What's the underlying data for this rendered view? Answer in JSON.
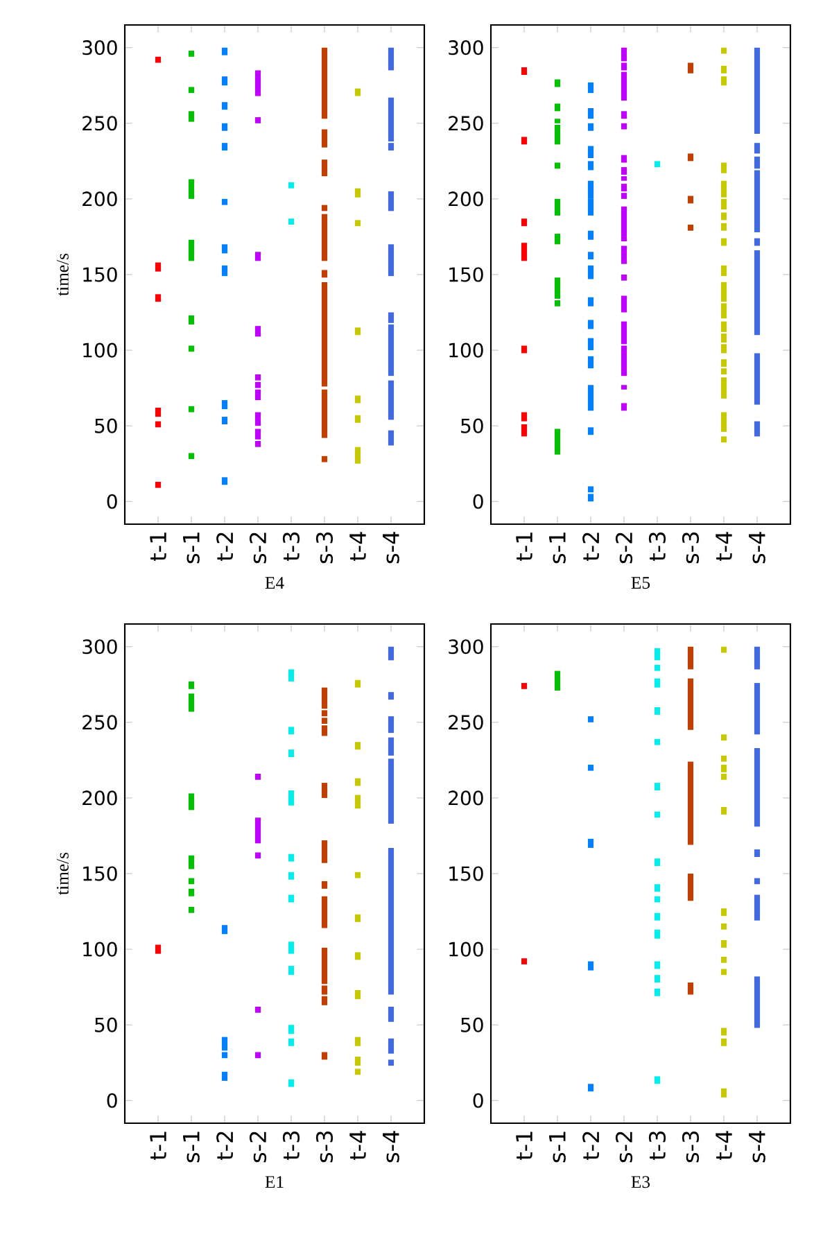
{
  "chart_data": [
    {
      "type": "bar",
      "xlabel": "E4",
      "ylabel": "time/s",
      "categories": [
        "t-1",
        "s-1",
        "t-2",
        "s-2",
        "t-3",
        "s-3",
        "t-4",
        "s-4"
      ],
      "ylim": [
        -15,
        315
      ],
      "yticks": [
        0,
        50,
        100,
        150,
        200,
        250,
        300
      ],
      "series": [
        {
          "color": "#ff0000",
          "x": [
            "t-1",
            "t-1",
            "t-1",
            "t-1",
            "t-1",
            "t-1"
          ],
          "base": [
            290,
            152,
            132,
            56,
            49,
            9
          ],
          "values": [
            4,
            6,
            5,
            6,
            4,
            4
          ]
        },
        {
          "color": "#00c000",
          "x": [
            "s-1",
            "s-1",
            "s-1",
            "s-1",
            "s-1",
            "s-1",
            "s-1",
            "s-1",
            "s-1"
          ],
          "base": [
            294,
            270,
            251,
            200,
            159,
            117,
            99,
            59,
            28
          ],
          "values": [
            4,
            4,
            7,
            13,
            14,
            6,
            4,
            4,
            4
          ]
        },
        {
          "color": "#0080ff",
          "x": [
            "t-2",
            "t-2",
            "t-2",
            "t-2",
            "t-2",
            "t-2",
            "t-2",
            "t-2",
            "t-2",
            "t-2",
            "t-2"
          ],
          "base": [
            295,
            275,
            259,
            245,
            232,
            196,
            164,
            149,
            61,
            51,
            11
          ],
          "values": [
            5,
            6,
            5,
            5,
            5,
            4,
            6,
            7,
            6,
            5,
            5
          ]
        },
        {
          "color": "#c000ff",
          "x": [
            "s-2",
            "s-2",
            "s-2",
            "s-2",
            "s-2",
            "s-2",
            "s-2",
            "s-2",
            "s-2",
            "s-2"
          ],
          "base": [
            268,
            250,
            159,
            109,
            80,
            75,
            67,
            50,
            41,
            36
          ],
          "values": [
            17,
            4,
            6,
            7,
            4,
            4,
            7,
            9,
            7,
            4
          ]
        },
        {
          "color": "#00eeee",
          "x": [
            "t-3",
            "t-3"
          ],
          "base": [
            207,
            183
          ],
          "values": [
            4,
            4
          ]
        },
        {
          "color": "#c04000",
          "x": [
            "s-3",
            "s-3",
            "s-3",
            "s-3",
            "s-3",
            "s-3",
            "s-3",
            "s-3",
            "s-3"
          ],
          "base": [
            253,
            234,
            215,
            192,
            159,
            148,
            76,
            42,
            26
          ],
          "values": [
            47,
            12,
            11,
            4,
            31,
            5,
            69,
            32,
            4
          ]
        },
        {
          "color": "#c8c800",
          "x": [
            "t-4",
            "t-4",
            "t-4",
            "t-4",
            "t-4",
            "t-4",
            "t-4"
          ],
          "base": [
            268,
            201,
            182,
            110,
            65,
            52,
            25
          ],
          "values": [
            5,
            6,
            4,
            5,
            5,
            5,
            11
          ]
        },
        {
          "color": "#4169e1",
          "x": [
            "s-4",
            "s-4",
            "s-4",
            "s-4",
            "s-4",
            "s-4",
            "s-4",
            "s-4",
            "s-4",
            "s-4"
          ],
          "base": [
            285,
            238,
            232,
            192,
            149,
            118,
            106,
            83,
            54,
            37
          ],
          "values": [
            15,
            29,
            5,
            13,
            21,
            7,
            11,
            23,
            26,
            10
          ]
        }
      ]
    },
    {
      "type": "bar",
      "xlabel": "E5",
      "categories": [
        "t-1",
        "s-1",
        "t-2",
        "s-2",
        "t-3",
        "s-3",
        "t-4",
        "s-4"
      ],
      "ylim": [
        -15,
        315
      ],
      "yticks": [
        0,
        50,
        100,
        150,
        200,
        250,
        300
      ],
      "series": [
        {
          "color": "#ff0000",
          "x": [
            "t-1",
            "t-1",
            "t-1",
            "t-1",
            "t-1",
            "t-1",
            "t-1"
          ],
          "base": [
            282,
            236,
            182,
            159,
            98,
            53,
            43
          ],
          "values": [
            5,
            5,
            5,
            12,
            5,
            6,
            8
          ]
        },
        {
          "color": "#00c000",
          "x": [
            "s-1",
            "s-1",
            "s-1",
            "s-1",
            "s-1",
            "s-1",
            "s-1",
            "s-1",
            "s-1",
            "s-1",
            "s-1"
          ],
          "base": [
            274,
            258,
            250,
            236,
            220,
            189,
            170,
            139,
            134,
            129,
            31
          ],
          "values": [
            5,
            5,
            3,
            13,
            4,
            11,
            7,
            9,
            5,
            4,
            17
          ]
        },
        {
          "color": "#0080ff",
          "x": [
            "t-2",
            "t-2",
            "t-2",
            "t-2",
            "t-2",
            "t-2",
            "t-2",
            "t-2",
            "t-2",
            "t-2",
            "t-2",
            "t-2",
            "t-2",
            "t-2",
            "t-2",
            "t-2",
            "t-2",
            "t-2"
          ],
          "base": [
            270,
            253,
            245,
            227,
            219,
            200,
            189,
            173,
            160,
            147,
            129,
            114,
            100,
            88,
            60,
            44,
            6,
            0
          ],
          "values": [
            7,
            7,
            5,
            8,
            6,
            12,
            11,
            6,
            5,
            9,
            6,
            6,
            8,
            8,
            17,
            5,
            4,
            5
          ]
        },
        {
          "color": "#c000ff",
          "x": [
            "s-2",
            "s-2",
            "s-2",
            "s-2",
            "s-2",
            "s-2",
            "s-2",
            "s-2",
            "s-2",
            "s-2",
            "s-2",
            "s-2",
            "s-2",
            "s-2",
            "s-2",
            "s-2",
            "s-2",
            "s-2"
          ],
          "base": [
            291,
            285,
            265,
            253,
            246,
            224,
            216,
            212,
            205,
            200,
            172,
            157,
            146,
            125,
            104,
            83,
            74,
            60
          ],
          "values": [
            9,
            5,
            19,
            5,
            4,
            5,
            5,
            3,
            5,
            4,
            23,
            12,
            4,
            11,
            15,
            20,
            3,
            5
          ]
        },
        {
          "color": "#00eeee",
          "x": [
            "t-3"
          ],
          "base": [
            221
          ],
          "values": [
            4
          ]
        },
        {
          "color": "#c04000",
          "x": [
            "s-3",
            "s-3",
            "s-3",
            "s-3"
          ],
          "base": [
            283,
            225,
            197,
            179
          ],
          "values": [
            7,
            5,
            5,
            4
          ]
        },
        {
          "color": "#c8c800",
          "x": [
            "t-4",
            "t-4",
            "t-4",
            "t-4",
            "t-4",
            "t-4",
            "t-4",
            "t-4",
            "t-4",
            "t-4",
            "t-4",
            "t-4",
            "t-4",
            "t-4",
            "t-4",
            "t-4",
            "t-4",
            "t-4",
            "t-4",
            "t-4"
          ],
          "base": [
            296,
            283,
            275,
            217,
            201,
            193,
            186,
            179,
            169,
            149,
            132,
            121,
            112,
            105,
            98,
            89,
            84,
            68,
            46,
            39
          ],
          "values": [
            4,
            5,
            6,
            7,
            11,
            7,
            5,
            5,
            5,
            7,
            13,
            10,
            7,
            6,
            6,
            5,
            4,
            14,
            13,
            4
          ]
        },
        {
          "color": "#4169e1",
          "x": [
            "s-4",
            "s-4",
            "s-4",
            "s-4",
            "s-4",
            "s-4",
            "s-4",
            "s-4"
          ],
          "base": [
            243,
            230,
            220,
            178,
            169,
            110,
            64,
            43
          ],
          "values": [
            57,
            7,
            8,
            41,
            5,
            56,
            34,
            10
          ]
        }
      ]
    },
    {
      "type": "bar",
      "xlabel": "E1",
      "ylabel": "time/s",
      "categories": [
        "t-1",
        "s-1",
        "t-2",
        "s-2",
        "t-3",
        "s-3",
        "t-4",
        "s-4"
      ],
      "ylim": [
        -15,
        315
      ],
      "yticks": [
        0,
        50,
        100,
        150,
        200,
        250,
        300
      ],
      "series": [
        {
          "color": "#ff0000",
          "x": [
            "t-1"
          ],
          "base": [
            97
          ],
          "values": [
            6
          ]
        },
        {
          "color": "#00c000",
          "x": [
            "s-1",
            "s-1",
            "s-1",
            "s-1",
            "s-1",
            "s-1",
            "s-1"
          ],
          "base": [
            272,
            257,
            192,
            153,
            143,
            135,
            124
          ],
          "values": [
            5,
            12,
            11,
            9,
            4,
            5,
            4
          ]
        },
        {
          "color": "#0080ff",
          "x": [
            "t-2",
            "t-2",
            "t-2",
            "t-2"
          ],
          "base": [
            110,
            33,
            28,
            13
          ],
          "values": [
            6,
            9,
            4,
            6
          ]
        },
        {
          "color": "#c000ff",
          "x": [
            "s-2",
            "s-2",
            "s-2",
            "s-2",
            "s-2"
          ],
          "base": [
            212,
            170,
            160,
            58,
            28
          ],
          "values": [
            4,
            17,
            4,
            4,
            4
          ]
        },
        {
          "color": "#00eeee",
          "x": [
            "t-3",
            "t-3",
            "t-3",
            "t-3",
            "t-3",
            "t-3",
            "t-3",
            "t-3",
            "t-3",
            "t-3",
            "t-3",
            "t-3"
          ],
          "base": [
            277,
            242,
            227,
            195,
            158,
            146,
            131,
            97,
            83,
            44,
            36,
            9
          ],
          "values": [
            8,
            5,
            5,
            10,
            5,
            5,
            5,
            8,
            6,
            6,
            5,
            5
          ]
        },
        {
          "color": "#c04000",
          "x": [
            "s-3",
            "s-3",
            "s-3",
            "s-3",
            "s-3",
            "s-3",
            "s-3",
            "s-3",
            "s-3",
            "s-3",
            "s-3",
            "s-3"
          ],
          "base": [
            259,
            254,
            249,
            241,
            200,
            157,
            140,
            114,
            77,
            70,
            63,
            27
          ],
          "values": [
            14,
            4,
            4,
            7,
            10,
            15,
            5,
            21,
            24,
            6,
            6,
            5
          ]
        },
        {
          "color": "#c8c800",
          "x": [
            "t-4",
            "t-4",
            "t-4",
            "t-4",
            "t-4",
            "t-4",
            "t-4",
            "t-4",
            "t-4",
            "t-4",
            "t-4"
          ],
          "base": [
            273,
            232,
            208,
            193,
            147,
            118,
            93,
            67,
            36,
            23,
            17
          ],
          "values": [
            5,
            5,
            5,
            9,
            4,
            5,
            5,
            6,
            6,
            6,
            4
          ]
        },
        {
          "color": "#4169e1",
          "x": [
            "s-4",
            "s-4",
            "s-4",
            "s-4",
            "s-4",
            "s-4",
            "s-4",
            "s-4",
            "s-4"
          ],
          "base": [
            291,
            265,
            243,
            228,
            183,
            70,
            52,
            31,
            23
          ],
          "values": [
            9,
            5,
            11,
            12,
            43,
            97,
            10,
            10,
            4
          ]
        }
      ]
    },
    {
      "type": "bar",
      "xlabel": "E3",
      "categories": [
        "t-1",
        "s-1",
        "t-2",
        "s-2",
        "t-3",
        "s-3",
        "t-4",
        "s-4"
      ],
      "ylim": [
        -15,
        315
      ],
      "yticks": [
        0,
        50,
        100,
        150,
        200,
        250,
        300
      ],
      "series": [
        {
          "color": "#ff0000",
          "x": [
            "t-1",
            "t-1"
          ],
          "base": [
            272,
            90
          ],
          "values": [
            4,
            4
          ]
        },
        {
          "color": "#00c000",
          "x": [
            "s-1"
          ],
          "base": [
            271
          ],
          "values": [
            13
          ]
        },
        {
          "color": "#0080ff",
          "x": [
            "t-2",
            "t-2",
            "t-2",
            "t-2",
            "t-2"
          ],
          "base": [
            250,
            218,
            167,
            86,
            6
          ],
          "values": [
            4,
            4,
            6,
            6,
            5
          ]
        },
        {
          "color": "#00eeee",
          "x": [
            "t-3",
            "t-3",
            "t-3",
            "t-3",
            "t-3",
            "t-3",
            "t-3",
            "t-3",
            "t-3",
            "t-3",
            "t-3",
            "t-3",
            "t-3",
            "t-3",
            "t-3",
            "t-3"
          ],
          "base": [
            291,
            284,
            273,
            255,
            235,
            205,
            187,
            155,
            138,
            131,
            119,
            107,
            87,
            78,
            69,
            11
          ],
          "values": [
            8,
            4,
            6,
            5,
            4,
            5,
            4,
            5,
            5,
            4,
            5,
            6,
            5,
            5,
            5,
            5
          ]
        },
        {
          "color": "#c04000",
          "x": [
            "s-3",
            "s-3",
            "s-3",
            "s-3",
            "s-3"
          ],
          "base": [
            285,
            245,
            169,
            132,
            70
          ],
          "values": [
            15,
            34,
            55,
            18,
            8
          ]
        },
        {
          "color": "#c8c800",
          "x": [
            "t-4",
            "t-4",
            "t-4",
            "t-4",
            "t-4",
            "t-4",
            "t-4",
            "t-4",
            "t-4",
            "t-4",
            "t-4",
            "t-4",
            "t-4",
            "t-4"
          ],
          "base": [
            296,
            238,
            224,
            217,
            212,
            189,
            122,
            113,
            101,
            91,
            83,
            43,
            36,
            2
          ],
          "values": [
            4,
            4,
            4,
            5,
            4,
            5,
            5,
            4,
            5,
            4,
            4,
            5,
            5,
            6
          ]
        },
        {
          "color": "#4169e1",
          "x": [
            "s-4",
            "s-4",
            "s-4",
            "s-4",
            "s-4",
            "s-4",
            "s-4"
          ],
          "base": [
            285,
            242,
            181,
            161,
            143,
            119,
            48
          ],
          "values": [
            15,
            34,
            52,
            5,
            4,
            17,
            34
          ]
        }
      ]
    }
  ]
}
